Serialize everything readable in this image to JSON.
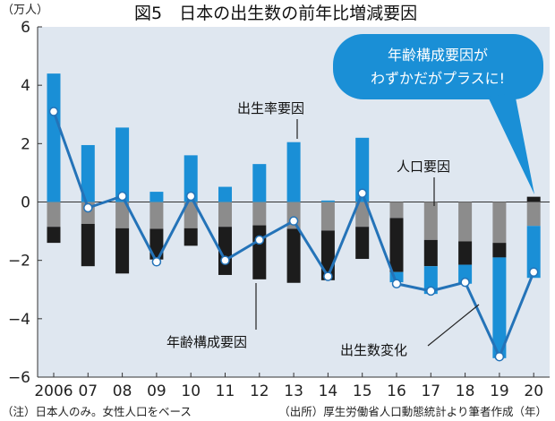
{
  "chart_data": {
    "type": "bar",
    "title": "図5　日本の出生数の前年比増減要因",
    "ylabel": "（万人）",
    "xlabel": "",
    "ylim": [
      -6,
      6
    ],
    "yticks": [
      6,
      4,
      2,
      0,
      -2,
      -4,
      -6
    ],
    "ytick_labels": [
      "6",
      "4",
      "2",
      "0",
      "−2",
      "−4",
      "−6"
    ],
    "categories": [
      "2006",
      "07",
      "08",
      "09",
      "10",
      "11",
      "12",
      "13",
      "14",
      "15",
      "16",
      "17",
      "18",
      "19",
      "20"
    ],
    "series": [
      {
        "name": "人口要因",
        "color": "#8c8c8c",
        "values": [
          -0.85,
          -0.75,
          -0.9,
          -0.92,
          -0.9,
          -0.85,
          -0.8,
          -0.92,
          -0.98,
          -0.85,
          -0.55,
          -1.3,
          -1.35,
          -1.4,
          -0.82
        ]
      },
      {
        "name": "年齢構成要因",
        "color": "#1c1c1c",
        "values": [
          -0.55,
          -1.45,
          -1.55,
          -1.05,
          -0.6,
          -1.65,
          -1.85,
          -1.85,
          -1.7,
          -1.1,
          -1.85,
          -0.9,
          -0.8,
          -0.5,
          0.18
        ]
      },
      {
        "name": "出生率要因",
        "color": "#1a8fd6",
        "values": [
          4.4,
          1.95,
          2.55,
          0.35,
          1.6,
          0.52,
          1.3,
          2.05,
          0.05,
          2.2,
          -0.35,
          -0.95,
          -0.65,
          -3.45,
          -1.78
        ]
      },
      {
        "name": "出生数変化",
        "color": "#1f6fb5",
        "values": [
          3.1,
          -0.2,
          0.2,
          -2.05,
          0.2,
          -2.0,
          -1.3,
          -0.65,
          -2.55,
          0.3,
          -2.8,
          -3.05,
          -2.75,
          -5.3,
          -2.4
        ]
      }
    ],
    "annotations": {
      "birth_rate_factor": "出生率要因",
      "population_factor": "人口要因",
      "age_structure_factor": "年齢構成要因",
      "birth_change": "出生数変化",
      "bubble_line1": "年齢構成要因が",
      "bubble_line2": "わずかだがプラスに!"
    },
    "notes": {
      "left": "（注）日本人のみ。女性人口をベース",
      "right": "（出所）厚生労働省人口動態統計より筆者作成（年）"
    },
    "grid": false,
    "legend": "none"
  },
  "colors": {
    "plot_background": "#dfe7f0",
    "bubble": "#1a8fd6",
    "line": "#2473b8",
    "axis": "#333333"
  }
}
